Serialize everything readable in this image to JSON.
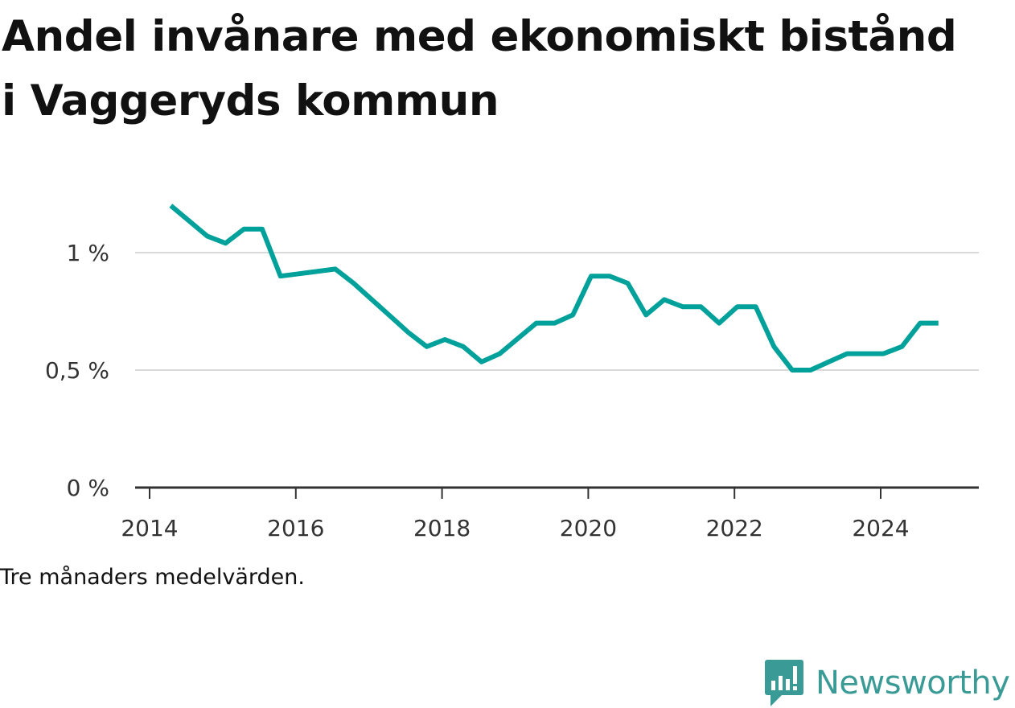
{
  "title": "Andel invånare med ekonomiskt bistånd i Vaggeryds kommun",
  "caption": "Tre månaders medelvärden.",
  "logo_text": "Newsworthy",
  "colors": {
    "line": "#00a19a",
    "grid": "#d9d9d9",
    "axis": "#333333",
    "logo": "#3a9b96"
  },
  "chart_data": {
    "type": "line",
    "title": "Andel invånare med ekonomiskt bistånd i Vaggeryds kommun",
    "xlabel": "",
    "ylabel": "",
    "xlim": [
      2014,
      2025.5
    ],
    "ylim": [
      0,
      1.25
    ],
    "x_ticks": [
      2014,
      2016,
      2018,
      2020,
      2022,
      2024
    ],
    "x_tick_labels": [
      "2014",
      "2016",
      "2018",
      "2020",
      "2022",
      "2024"
    ],
    "y_ticks": [
      0,
      0.5,
      1
    ],
    "y_tick_labels": [
      "0 %",
      "0,5 %",
      "1 %"
    ],
    "grid": true,
    "series": [
      {
        "x": [
          2014.29,
          2014.54,
          2014.79,
          2015.04,
          2015.29,
          2015.54,
          2015.79,
          2016.04,
          2016.29,
          2016.54,
          2016.79,
          2017.04,
          2017.29,
          2017.54,
          2017.79,
          2018.04,
          2018.29,
          2018.54,
          2018.79,
          2019.04,
          2019.29,
          2019.54,
          2019.79,
          2020.04,
          2020.29,
          2020.54,
          2020.79,
          2021.04,
          2021.29,
          2021.54,
          2021.79,
          2022.04,
          2022.29,
          2022.54,
          2022.79,
          2023.04,
          2023.29,
          2023.54,
          2023.79,
          2024.04,
          2024.29,
          2024.54,
          2024.79
        ],
        "values": [
          1.2,
          1.135,
          1.07,
          1.04,
          1.1,
          1.1,
          0.9,
          0.91,
          0.92,
          0.93,
          0.87,
          0.8,
          0.73,
          0.66,
          0.6,
          0.63,
          0.6,
          0.535,
          0.57,
          0.635,
          0.7,
          0.7,
          0.735,
          0.9,
          0.9,
          0.87,
          0.735,
          0.8,
          0.77,
          0.77,
          0.7,
          0.77,
          0.77,
          0.6,
          0.5,
          0.5,
          0.535,
          0.57,
          0.57,
          0.57,
          0.6,
          0.7,
          0.7
        ]
      }
    ]
  }
}
